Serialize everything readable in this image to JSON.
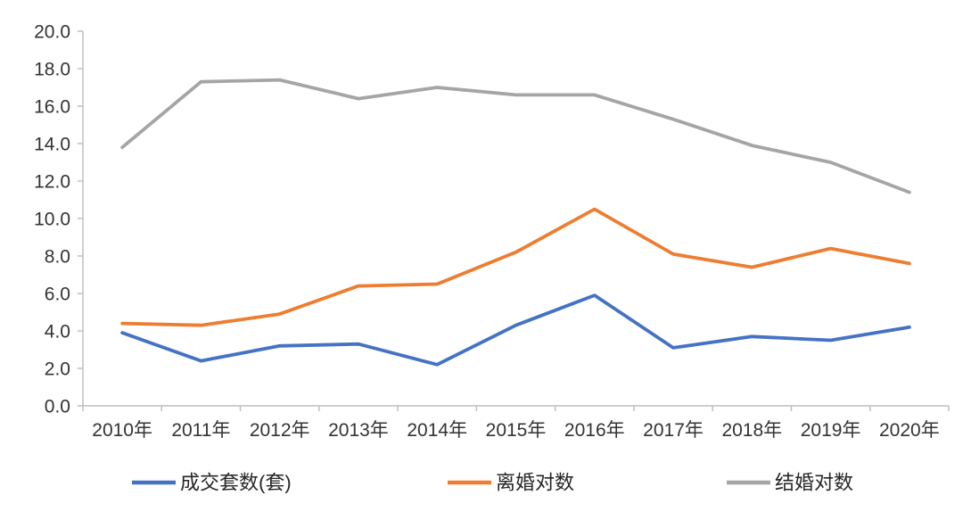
{
  "chart_data": {
    "type": "line",
    "title": "",
    "xlabel": "",
    "ylabel": "",
    "categories": [
      "2010年",
      "2011年",
      "2012年",
      "2013年",
      "2014年",
      "2015年",
      "2016年",
      "2017年",
      "2018年",
      "2019年",
      "2020年"
    ],
    "series": [
      {
        "name": "成交套数(套)",
        "color": "#4472C4",
        "values": [
          3.9,
          2.4,
          3.2,
          3.3,
          2.2,
          4.3,
          5.9,
          3.1,
          3.7,
          3.5,
          4.2
        ]
      },
      {
        "name": "离婚对数",
        "color": "#ED7D31",
        "values": [
          4.4,
          4.3,
          4.9,
          6.4,
          6.5,
          8.2,
          10.5,
          8.1,
          7.4,
          8.4,
          7.6
        ]
      },
      {
        "name": "结婚对数",
        "color": "#A5A5A5",
        "values": [
          13.8,
          17.3,
          17.4,
          16.4,
          17.0,
          16.6,
          16.6,
          15.3,
          13.9,
          13.0,
          11.4
        ]
      }
    ],
    "ylim": [
      0,
      20
    ],
    "ytick_step": 2,
    "ytick_labels": [
      "0.0",
      "2.0",
      "4.0",
      "6.0",
      "8.0",
      "10.0",
      "12.0",
      "14.0",
      "16.0",
      "18.0",
      "20.0"
    ],
    "grid": false,
    "legend_position": "bottom",
    "colors": {
      "axis_line": "#BFBFBF",
      "tick_label": "#333333",
      "background": "#FFFFFF"
    }
  }
}
